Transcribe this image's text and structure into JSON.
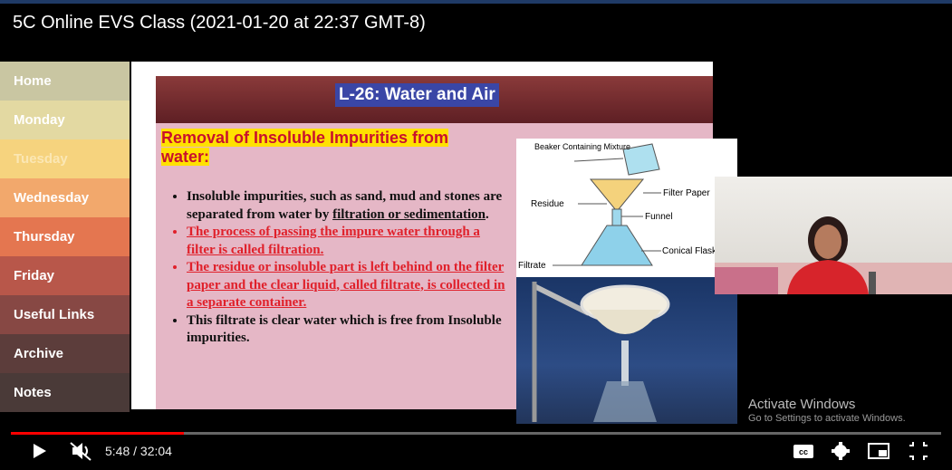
{
  "video": {
    "title": "5C Online EVS Class (2021-01-20 at 22:37 GMT-8)",
    "time": "5:48 / 32:04"
  },
  "sidebar": {
    "items": [
      "Home",
      "Monday",
      "Tuesday",
      "Wednesday",
      "Thursday",
      "Friday",
      "Useful Links",
      "Archive",
      "Notes"
    ]
  },
  "slide": {
    "title": "L-26: Water and Air",
    "heading": "Removal of Insoluble Impurities from water:",
    "bullets": [
      [
        "Insoluble impurities, such as sand, mud and stones are separated from water by ",
        "filtration or sedimentation",
        "."
      ],
      [
        "The process of passing the impure water through a filter is called filtration."
      ],
      [
        "The residue or insoluble part is left behind on the filter paper and the clear liquid, called filtrate, is collected in a separate container."
      ],
      [
        "This filtrate is clear water which is free from Insoluble impurities."
      ]
    ],
    "diagram_labels": [
      "Beaker Containing Mixture",
      "Filter Paper",
      "Residue",
      "Funnel",
      "Conical Flask",
      "Filtrate"
    ]
  },
  "watermark": {
    "title": "Activate Windows",
    "subtitle": "Go to Settings to activate Windows."
  }
}
